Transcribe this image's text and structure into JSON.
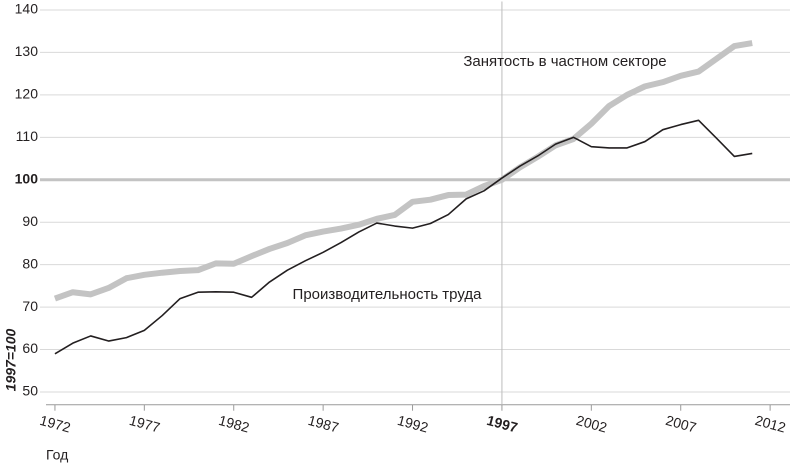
{
  "chart_data": {
    "type": "line",
    "y_label": "1997=100",
    "x_label": "Год",
    "x": [
      1972,
      1973,
      1974,
      1975,
      1976,
      1977,
      1978,
      1979,
      1980,
      1981,
      1982,
      1983,
      1984,
      1985,
      1986,
      1987,
      1988,
      1989,
      1990,
      1991,
      1992,
      1993,
      1994,
      1995,
      1996,
      1997,
      1998,
      1999,
      2000,
      2001,
      2002,
      2003,
      2004,
      2005,
      2006,
      2007,
      2008,
      2009,
      2010,
      2011
    ],
    "series": [
      {
        "name": "Занятость в частном секторе",
        "color": "#c3c3c3",
        "values": [
          72,
          73.5,
          73,
          74.5,
          76.8,
          77.6,
          78.1,
          78.5,
          78.7,
          80.3,
          80.2,
          82,
          83.7,
          85.1,
          86.9,
          87.8,
          88.5,
          89.4,
          90.8,
          91.7,
          94.8,
          95.3,
          96.4,
          96.5,
          98.5,
          100,
          102.9,
          105.4,
          108.1,
          109.6,
          113.2,
          117.4,
          120,
          122,
          123,
          124.5,
          125.5,
          128.5,
          131.5,
          132.2
        ]
      },
      {
        "name": "Производительность труда",
        "color": "#231f20",
        "values": [
          59,
          61.5,
          63.2,
          62,
          62.8,
          64.5,
          68,
          72,
          73.5,
          73.6,
          73.5,
          72.3,
          75.9,
          78.7,
          80.9,
          82.9,
          85.2,
          87.7,
          89.8,
          89.1,
          88.6,
          89.7,
          91.8,
          95.5,
          97.4,
          100.4,
          103.2,
          105.6,
          108.4,
          110,
          107.8,
          107.5,
          107.5,
          109,
          111.8,
          113,
          114,
          109.8,
          105.5,
          106.2
        ]
      }
    ],
    "xlim": [
      1971.5,
      2013
    ],
    "xticks": [
      1972,
      1977,
      1982,
      1987,
      1992,
      1997,
      2002,
      2007,
      2012
    ],
    "ylim": [
      47,
      142
    ],
    "yticks": [
      50,
      60,
      70,
      80,
      90,
      100,
      110,
      120,
      130,
      140
    ],
    "reference_x": 1997,
    "reference_y": 100,
    "grid": true
  }
}
